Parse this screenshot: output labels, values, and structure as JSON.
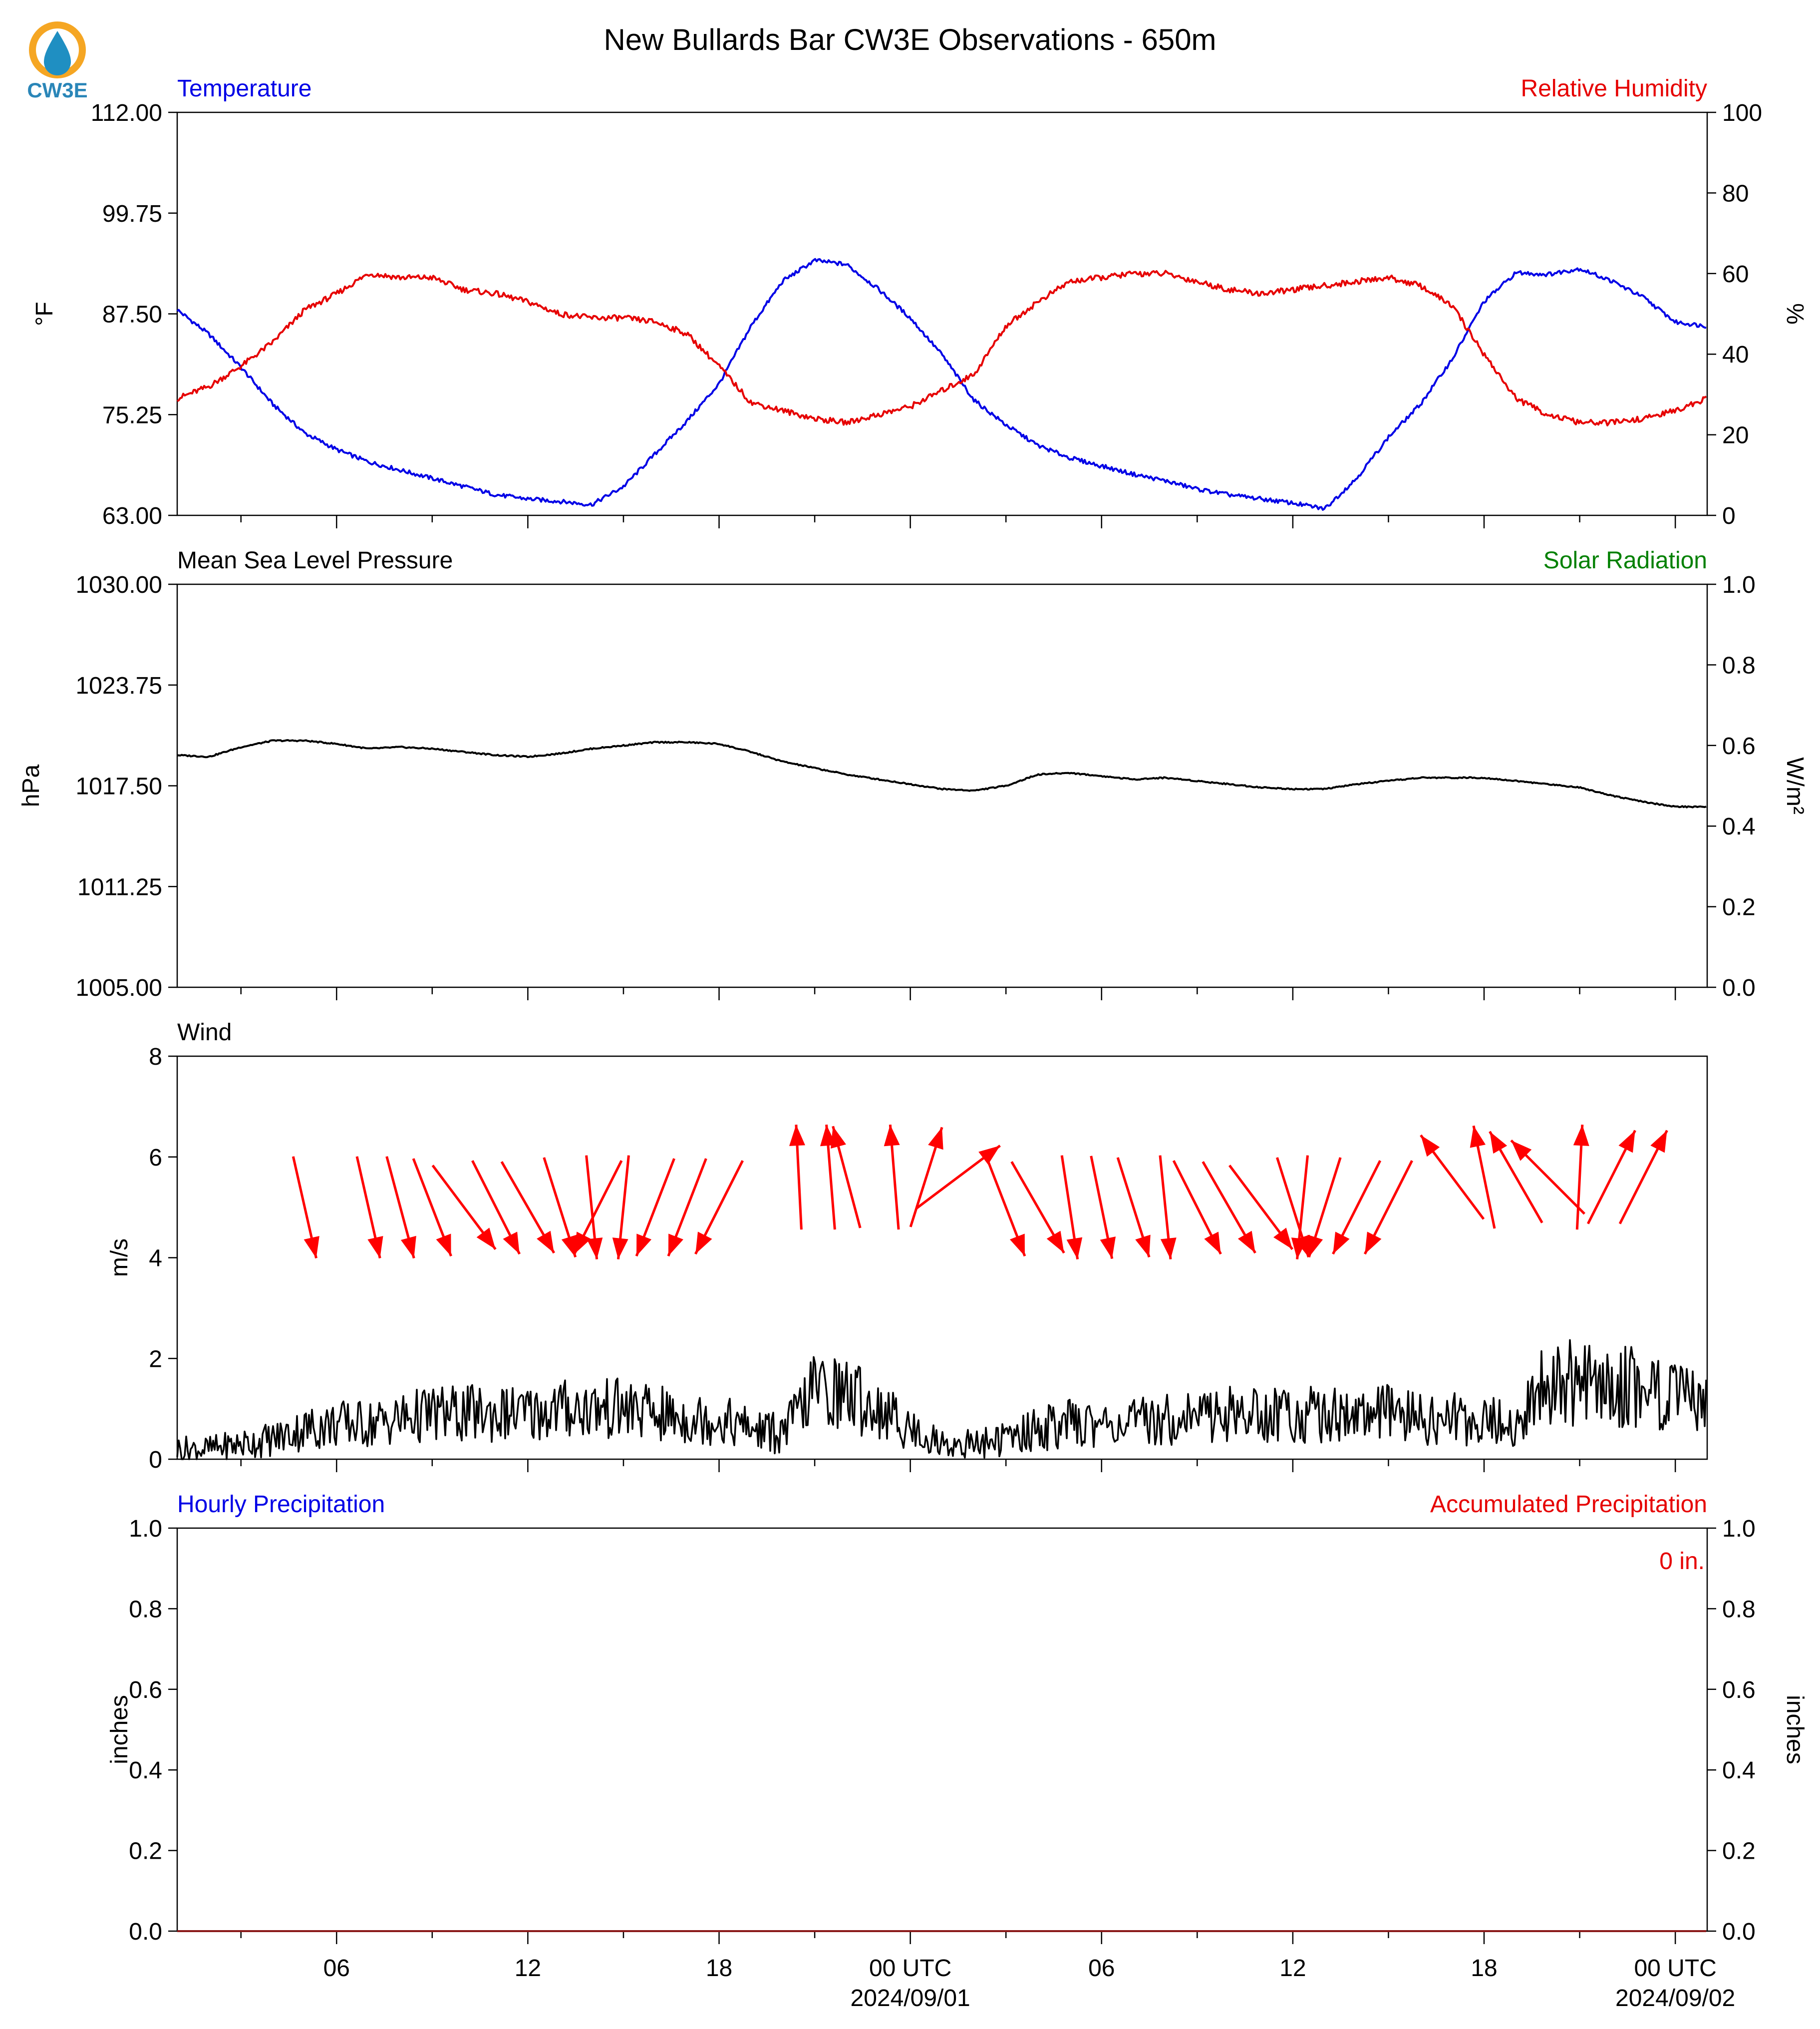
{
  "title": "New Bullards Bar CW3E Observations - 650m",
  "logo": {
    "text": "CW3E",
    "ring_color": "#f5a623",
    "drop_color": "#1f8fc2"
  },
  "x_axis": {
    "tick_labels": [
      "06",
      "12",
      "18",
      "00 UTC",
      "06",
      "12",
      "18",
      "00 UTC"
    ],
    "date_labels": [
      "2024/09/01",
      "2024/09/02"
    ],
    "start": "2024-08-31T01:00Z",
    "end": "2024-09-02T01:00Z"
  },
  "colors": {
    "temperature": "#0000e6",
    "humidity": "#e60000",
    "pressure": "#000000",
    "solar": "#008000",
    "wind": "#000000",
    "arrows": "#ff0000",
    "hourly_precip": "#0000e6",
    "accum_precip": "#e60000"
  },
  "chart_data": [
    {
      "type": "line",
      "panel": "temperature-humidity",
      "left_label": "Temperature",
      "right_label": "Relative Humidity",
      "ylabel": "°F",
      "ylabel_right": "%",
      "ylim": [
        63.0,
        112.0
      ],
      "ylim_right": [
        0,
        100
      ],
      "yticks": [
        "63.00",
        "75.25",
        "87.50",
        "99.75",
        "112.00"
      ],
      "yticks_right": [
        "0",
        "20",
        "40",
        "60",
        "80",
        "100"
      ],
      "series": [
        {
          "name": "Temperature",
          "axis": "left",
          "x": [
            "2024-08-31T01:00Z",
            "2024-08-31T02:00Z",
            "2024-08-31T03:00Z",
            "2024-08-31T04:00Z",
            "2024-08-31T05:00Z",
            "2024-08-31T06:00Z",
            "2024-08-31T07:00Z",
            "2024-08-31T08:00Z",
            "2024-08-31T09:00Z",
            "2024-08-31T10:00Z",
            "2024-08-31T11:00Z",
            "2024-08-31T12:00Z",
            "2024-08-31T13:00Z",
            "2024-08-31T14:00Z",
            "2024-08-31T15:00Z",
            "2024-08-31T16:00Z",
            "2024-08-31T17:00Z",
            "2024-08-31T18:00Z",
            "2024-08-31T19:00Z",
            "2024-08-31T20:00Z",
            "2024-08-31T21:00Z",
            "2024-08-31T22:00Z",
            "2024-08-31T23:00Z",
            "2024-09-01T00:00Z",
            "2024-09-01T01:00Z",
            "2024-09-01T02:00Z",
            "2024-09-01T03:00Z",
            "2024-09-01T04:00Z",
            "2024-09-01T05:00Z",
            "2024-09-01T06:00Z",
            "2024-09-01T07:00Z",
            "2024-09-01T08:00Z",
            "2024-09-01T09:00Z",
            "2024-09-01T10:00Z",
            "2024-09-01T11:00Z",
            "2024-09-01T12:00Z",
            "2024-09-01T13:00Z",
            "2024-09-01T14:00Z",
            "2024-09-01T15:00Z",
            "2024-09-01T16:00Z",
            "2024-09-01T17:00Z",
            "2024-09-01T18:00Z",
            "2024-09-01T19:00Z",
            "2024-09-01T20:00Z",
            "2024-09-01T21:00Z",
            "2024-09-01T22:00Z",
            "2024-09-01T23:00Z",
            "2024-09-02T00:00Z",
            "2024-09-02T01:00Z"
          ],
          "values": [
            88.0,
            85.0,
            81.0,
            76.5,
            73.0,
            71.0,
            69.5,
            68.5,
            67.5,
            66.5,
            65.5,
            65.0,
            64.7,
            64.3,
            66.5,
            70.5,
            74.5,
            79.0,
            86.0,
            91.5,
            94.0,
            93.5,
            90.5,
            87.0,
            82.5,
            77.0,
            74.0,
            71.5,
            70.0,
            69.0,
            68.0,
            67.2,
            66.2,
            65.5,
            65.0,
            64.5,
            63.8,
            67.5,
            72.5,
            76.5,
            82.0,
            89.0,
            92.5,
            92.3,
            93.0,
            91.5,
            89.5,
            86.5,
            86.0
          ]
        },
        {
          "name": "Relative Humidity",
          "axis": "right",
          "x": [
            "2024-08-31T01:00Z",
            "2024-08-31T02:00Z",
            "2024-08-31T03:00Z",
            "2024-08-31T04:00Z",
            "2024-08-31T05:00Z",
            "2024-08-31T06:00Z",
            "2024-08-31T07:00Z",
            "2024-08-31T08:00Z",
            "2024-08-31T09:00Z",
            "2024-08-31T10:00Z",
            "2024-08-31T11:00Z",
            "2024-08-31T12:00Z",
            "2024-08-31T13:00Z",
            "2024-08-31T14:00Z",
            "2024-08-31T15:00Z",
            "2024-08-31T16:00Z",
            "2024-08-31T17:00Z",
            "2024-08-31T18:00Z",
            "2024-08-31T19:00Z",
            "2024-08-31T20:00Z",
            "2024-08-31T21:00Z",
            "2024-08-31T22:00Z",
            "2024-08-31T23:00Z",
            "2024-09-01T00:00Z",
            "2024-09-01T01:00Z",
            "2024-09-01T02:00Z",
            "2024-09-01T03:00Z",
            "2024-09-01T04:00Z",
            "2024-09-01T05:00Z",
            "2024-09-01T06:00Z",
            "2024-09-01T07:00Z",
            "2024-09-01T08:00Z",
            "2024-09-01T09:00Z",
            "2024-09-01T10:00Z",
            "2024-09-01T11:00Z",
            "2024-09-01T12:00Z",
            "2024-09-01T13:00Z",
            "2024-09-01T14:00Z",
            "2024-09-01T15:00Z",
            "2024-09-01T16:00Z",
            "2024-09-01T17:00Z",
            "2024-09-01T18:00Z",
            "2024-09-01T19:00Z",
            "2024-09-01T20:00Z",
            "2024-09-01T21:00Z",
            "2024-09-01T22:00Z",
            "2024-09-01T23:00Z",
            "2024-09-02T00:00Z",
            "2024-09-02T01:00Z"
          ],
          "values": [
            29,
            32,
            37,
            43,
            51,
            55,
            60,
            59,
            59,
            56,
            55,
            53,
            50,
            49,
            49,
            48,
            45,
            37,
            28,
            26,
            24,
            23,
            25,
            27,
            31,
            35,
            47,
            53,
            58,
            59,
            60,
            60,
            58,
            56,
            55,
            56,
            57,
            58,
            59,
            57,
            52,
            40,
            29,
            25,
            23,
            23,
            24,
            26,
            29
          ]
        }
      ]
    },
    {
      "type": "line",
      "panel": "pressure-solar",
      "left_label": "Mean Sea Level Pressure",
      "right_label": "Solar Radiation",
      "ylabel": "hPa",
      "ylabel_right": "W/m²",
      "ylim": [
        1005.0,
        1030.0
      ],
      "ylim_right": [
        0.0,
        1.0
      ],
      "yticks": [
        "1005.00",
        "1011.25",
        "1017.50",
        "1023.75",
        "1030.00"
      ],
      "yticks_right": [
        "0.0",
        "0.2",
        "0.4",
        "0.6",
        "0.8",
        "1.0"
      ],
      "series": [
        {
          "name": "Mean Sea Level Pressure",
          "axis": "left",
          "x": [
            "2024-08-31T01:00Z",
            "2024-08-31T02:00Z",
            "2024-08-31T03:00Z",
            "2024-08-31T04:00Z",
            "2024-08-31T05:00Z",
            "2024-08-31T06:00Z",
            "2024-08-31T07:00Z",
            "2024-08-31T08:00Z",
            "2024-08-31T09:00Z",
            "2024-08-31T10:00Z",
            "2024-08-31T11:00Z",
            "2024-08-31T12:00Z",
            "2024-08-31T13:00Z",
            "2024-08-31T14:00Z",
            "2024-08-31T15:00Z",
            "2024-08-31T16:00Z",
            "2024-08-31T17:00Z",
            "2024-08-31T18:00Z",
            "2024-08-31T19:00Z",
            "2024-08-31T20:00Z",
            "2024-08-31T21:00Z",
            "2024-08-31T22:00Z",
            "2024-08-31T23:00Z",
            "2024-09-01T00:00Z",
            "2024-09-01T01:00Z",
            "2024-09-01T02:00Z",
            "2024-09-01T03:00Z",
            "2024-09-01T04:00Z",
            "2024-09-01T05:00Z",
            "2024-09-01T06:00Z",
            "2024-09-01T07:00Z",
            "2024-09-01T08:00Z",
            "2024-09-01T09:00Z",
            "2024-09-01T10:00Z",
            "2024-09-01T11:00Z",
            "2024-09-01T12:00Z",
            "2024-09-01T13:00Z",
            "2024-09-01T14:00Z",
            "2024-09-01T15:00Z",
            "2024-09-01T16:00Z",
            "2024-09-01T17:00Z",
            "2024-09-01T18:00Z",
            "2024-09-01T19:00Z",
            "2024-09-01T20:00Z",
            "2024-09-01T21:00Z",
            "2024-09-01T22:00Z",
            "2024-09-01T23:00Z",
            "2024-09-02T00:00Z",
            "2024-09-02T01:00Z"
          ],
          "values": [
            1019.4,
            1019.3,
            1019.9,
            1020.3,
            1020.3,
            1020.1,
            1019.8,
            1019.9,
            1019.8,
            1019.6,
            1019.4,
            1019.3,
            1019.5,
            1019.8,
            1020.0,
            1020.2,
            1020.2,
            1020.1,
            1019.6,
            1019.0,
            1018.6,
            1018.2,
            1017.9,
            1017.6,
            1017.3,
            1017.2,
            1017.5,
            1018.2,
            1018.3,
            1018.1,
            1017.9,
            1018.0,
            1017.8,
            1017.6,
            1017.4,
            1017.3,
            1017.3,
            1017.6,
            1017.8,
            1018.0,
            1018.0,
            1018.0,
            1017.8,
            1017.6,
            1017.4,
            1016.9,
            1016.5,
            1016.2,
            1016.2
          ]
        },
        {
          "name": "Solar Radiation",
          "axis": "right",
          "x": [],
          "values": []
        }
      ]
    },
    {
      "type": "line",
      "panel": "wind",
      "left_label": "Wind",
      "ylabel": "m/s",
      "ylim": [
        0,
        8
      ],
      "yticks": [
        "0",
        "2",
        "4",
        "6",
        "8"
      ],
      "series": [
        {
          "name": "Wind",
          "x": [
            "2024-08-31T01:00Z",
            "2024-08-31T02:00Z",
            "2024-08-31T03:00Z",
            "2024-08-31T04:00Z",
            "2024-08-31T05:00Z",
            "2024-08-31T06:00Z",
            "2024-08-31T07:00Z",
            "2024-08-31T08:00Z",
            "2024-08-31T09:00Z",
            "2024-08-31T10:00Z",
            "2024-08-31T11:00Z",
            "2024-08-31T12:00Z",
            "2024-08-31T13:00Z",
            "2024-08-31T14:00Z",
            "2024-08-31T15:00Z",
            "2024-08-31T16:00Z",
            "2024-08-31T17:00Z",
            "2024-08-31T18:00Z",
            "2024-08-31T19:00Z",
            "2024-08-31T20:00Z",
            "2024-08-31T21:00Z",
            "2024-08-31T22:00Z",
            "2024-08-31T23:00Z",
            "2024-09-01T00:00Z",
            "2024-09-01T01:00Z",
            "2024-09-01T02:00Z",
            "2024-09-01T03:00Z",
            "2024-09-01T04:00Z",
            "2024-09-01T05:00Z",
            "2024-09-01T06:00Z",
            "2024-09-01T07:00Z",
            "2024-09-01T08:00Z",
            "2024-09-01T09:00Z",
            "2024-09-01T10:00Z",
            "2024-09-01T11:00Z",
            "2024-09-01T12:00Z",
            "2024-09-01T13:00Z",
            "2024-09-01T14:00Z",
            "2024-09-01T15:00Z",
            "2024-09-01T16:00Z",
            "2024-09-01T17:00Z",
            "2024-09-01T18:00Z",
            "2024-09-01T19:00Z",
            "2024-09-01T20:00Z",
            "2024-09-01T21:00Z",
            "2024-09-01T22:00Z",
            "2024-09-01T23:00Z",
            "2024-09-02T00:00Z",
            "2024-09-02T01:00Z"
          ],
          "values": [
            0.2,
            0.2,
            0.3,
            0.4,
            0.6,
            0.7,
            0.7,
            0.8,
            0.9,
            0.9,
            0.9,
            0.9,
            1.0,
            1.0,
            1.0,
            0.9,
            0.8,
            0.8,
            0.6,
            0.5,
            1.4,
            1.3,
            1.0,
            0.6,
            0.3,
            0.3,
            0.4,
            0.6,
            0.7,
            0.7,
            0.7,
            0.8,
            0.9,
            0.9,
            0.9,
            0.9,
            0.9,
            0.9,
            0.9,
            0.8,
            0.8,
            0.8,
            0.6,
            1.6,
            1.5,
            1.4,
            1.5,
            1.2,
            1.0
          ]
        }
      ],
      "arrows": [
        {
          "hour": 4.0,
          "u": 0.22,
          "v": -0.97
        },
        {
          "hour": 6.0,
          "u": 0.22,
          "v": -0.97
        },
        {
          "hour": 7.0,
          "u": 0.26,
          "v": -0.97
        },
        {
          "hour": 8.0,
          "u": 0.36,
          "v": -0.93
        },
        {
          "hour": 9.0,
          "u": 0.6,
          "v": -0.8
        },
        {
          "hour": 10.0,
          "u": 0.45,
          "v": -0.89
        },
        {
          "hour": 11.0,
          "u": 0.5,
          "v": -0.87
        },
        {
          "hour": 12.0,
          "u": 0.3,
          "v": -0.95
        },
        {
          "hour": 13.0,
          "u": 0.1,
          "v": -0.99
        },
        {
          "hour": 13.2,
          "u": -0.45,
          "v": -0.89
        },
        {
          "hour": 14.0,
          "u": -0.1,
          "v": -0.99
        },
        {
          "hour": 15.0,
          "u": -0.36,
          "v": -0.93
        },
        {
          "hour": 16.0,
          "u": -0.36,
          "v": -0.93
        },
        {
          "hour": 17.0,
          "u": -0.45,
          "v": -0.89
        },
        {
          "hour": 19.5,
          "u": -0.05,
          "v": 1.0
        },
        {
          "hour": 20.5,
          "u": -0.08,
          "v": 1.0
        },
        {
          "hour": 21.0,
          "u": -0.26,
          "v": 0.97
        },
        {
          "hour": 22.5,
          "u": -0.08,
          "v": 1.0
        },
        {
          "hour": 23.5,
          "u": 0.3,
          "v": 0.95
        },
        {
          "hour": 24.5,
          "u": 0.8,
          "v": 0.6
        },
        {
          "hour": 26.0,
          "u": 0.36,
          "v": -0.93
        },
        {
          "hour": 27.0,
          "u": 0.5,
          "v": -0.87
        },
        {
          "hour": 28.0,
          "u": 0.15,
          "v": -0.99
        },
        {
          "hour": 29.0,
          "u": 0.2,
          "v": -0.98
        },
        {
          "hour": 30.0,
          "u": 0.3,
          "v": -0.95
        },
        {
          "hour": 31.0,
          "u": 0.1,
          "v": -0.99
        },
        {
          "hour": 32.0,
          "u": 0.45,
          "v": -0.89
        },
        {
          "hour": 33.0,
          "u": 0.5,
          "v": -0.87
        },
        {
          "hour": 34.0,
          "u": 0.6,
          "v": -0.8
        },
        {
          "hour": 35.0,
          "u": 0.3,
          "v": -0.95
        },
        {
          "hour": 35.3,
          "u": -0.1,
          "v": -0.99
        },
        {
          "hour": 36.0,
          "u": -0.3,
          "v": -0.95
        },
        {
          "hour": 37.0,
          "u": -0.45,
          "v": -0.89
        },
        {
          "hour": 38.0,
          "u": -0.45,
          "v": -0.89
        },
        {
          "hour": 40.0,
          "u": -0.6,
          "v": 0.8
        },
        {
          "hour": 41.0,
          "u": -0.2,
          "v": 0.98
        },
        {
          "hour": 42.0,
          "u": -0.5,
          "v": 0.87
        },
        {
          "hour": 43.0,
          "u": -0.7,
          "v": 0.7
        },
        {
          "hour": 44.0,
          "u": 0.05,
          "v": 1.0
        },
        {
          "hour": 45.0,
          "u": 0.45,
          "v": 0.89
        },
        {
          "hour": 46.0,
          "u": 0.45,
          "v": 0.89
        }
      ]
    },
    {
      "type": "line",
      "panel": "precipitation",
      "left_label": "Hourly Precipitation",
      "right_label": "Accumulated Precipitation",
      "ylabel": "inches",
      "ylabel_right": "inches",
      "ylim": [
        0.0,
        1.0
      ],
      "ylim_right": [
        0.0,
        1.0
      ],
      "yticks": [
        "0.0",
        "0.2",
        "0.4",
        "0.6",
        "0.8",
        "1.0"
      ],
      "yticks_right": [
        "0.0",
        "0.2",
        "0.4",
        "0.6",
        "0.8",
        "1.0"
      ],
      "annotation": "0 in.",
      "series": [
        {
          "name": "Hourly Precipitation",
          "axis": "left",
          "x": [
            "2024-08-31T01:00Z",
            "2024-09-02T01:00Z"
          ],
          "values": [
            0,
            0
          ]
        },
        {
          "name": "Accumulated Precipitation",
          "axis": "right",
          "x": [
            "2024-08-31T01:00Z",
            "2024-09-02T01:00Z"
          ],
          "values": [
            0,
            0
          ]
        }
      ]
    }
  ]
}
